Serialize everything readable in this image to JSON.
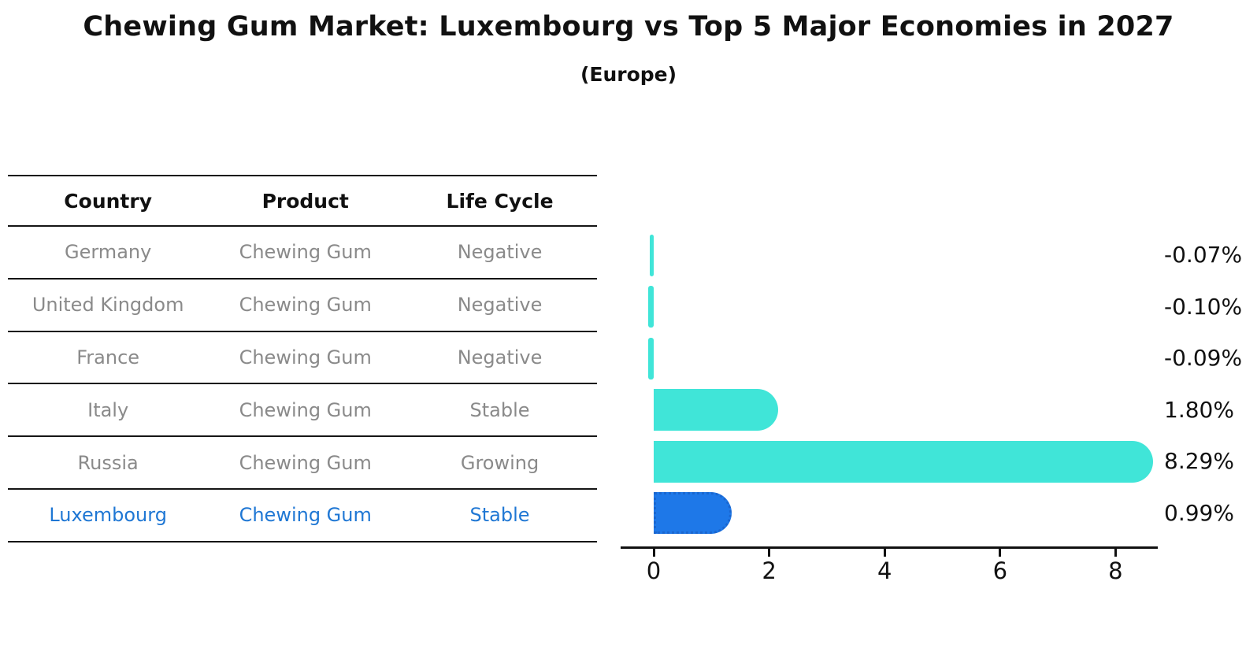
{
  "title": "Chewing Gum Market: Luxembourg vs Top 5 Major Economies in 2027",
  "subtitle": "(Europe)",
  "table": {
    "columns": [
      "Country",
      "Product",
      "Life Cycle"
    ],
    "rows": [
      {
        "country": "Germany",
        "product": "Chewing Gum",
        "life_cycle": "Negative",
        "highlight": false
      },
      {
        "country": "United Kingdom",
        "product": "Chewing Gum",
        "life_cycle": "Negative",
        "highlight": false
      },
      {
        "country": "France",
        "product": "Chewing Gum",
        "life_cycle": "Negative",
        "highlight": false
      },
      {
        "country": "Italy",
        "product": "Chewing Gum",
        "life_cycle": "Stable",
        "highlight": false
      },
      {
        "country": "Russia",
        "product": "Chewing Gum",
        "life_cycle": "Growing",
        "highlight": false
      },
      {
        "country": "Luxembourg",
        "product": "Chewing Gum",
        "life_cycle": "Stable",
        "highlight": true
      }
    ]
  },
  "chart_data": {
    "type": "bar",
    "orientation": "horizontal",
    "title": "Chewing Gum Market: Luxembourg vs Top 5 Major Economies in 2027",
    "subtitle": "(Europe)",
    "categories": [
      "Germany",
      "United Kingdom",
      "France",
      "Italy",
      "Russia",
      "Luxembourg"
    ],
    "values": [
      -0.07,
      -0.1,
      -0.09,
      1.8,
      8.29,
      0.99
    ],
    "value_labels": [
      "-0.07%",
      "-0.10%",
      "-0.09%",
      "1.80%",
      "8.29%",
      "0.99%"
    ],
    "xlabel": "",
    "ylabel": "",
    "xticks": [
      0,
      2,
      4,
      6,
      8
    ],
    "xlim": [
      -0.6,
      8.75
    ],
    "grid": false,
    "legend": false,
    "bar_color": "#40E5D8",
    "highlight_color": "#1E78E8",
    "highlight_border_color": "#1A66CF",
    "highlight_index": 5,
    "axis_color": "#111111",
    "label_color": "#111111",
    "muted_text_color": "#8a8a8a",
    "highlight_text_color": "#1F77D4"
  }
}
